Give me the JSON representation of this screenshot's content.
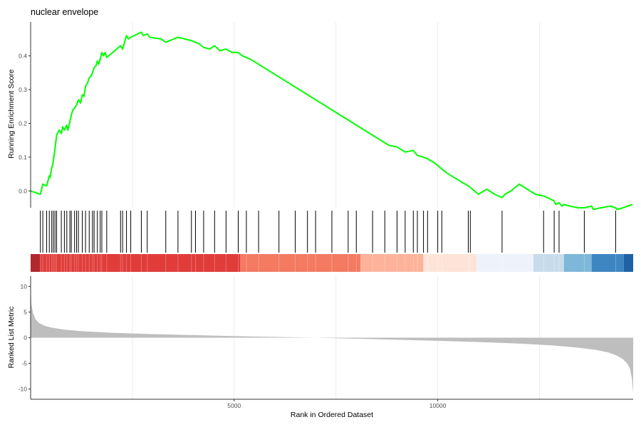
{
  "chart_data": {
    "type": "line",
    "title": "nuclear envelope",
    "xlabel": "Rank in Ordered Dataset",
    "xlim": [
      1,
      14800
    ],
    "x_ticks": [
      5000,
      10000
    ],
    "x_tick_labels": [
      "5000",
      "10000"
    ],
    "x_grid": [
      2500,
      5000,
      7500,
      10000,
      12500
    ],
    "grid": true,
    "panels": {
      "running_score": {
        "ylabel": "Running Enrichment Score",
        "ylim": [
          -0.05,
          0.5
        ],
        "y_ticks": [
          0.0,
          0.1,
          0.2,
          0.3,
          0.4
        ],
        "y_tick_labels": [
          "0.0",
          "0.1",
          "0.2",
          "0.3",
          "0.4"
        ],
        "line_color": "#00ff00",
        "series": [
          {
            "x": [
              1,
              240,
              300,
              395,
              460,
              480,
              520,
              540,
              560,
              600,
              640,
              700,
              755,
              790,
              830,
              890,
              915,
              965,
              1000,
              1040,
              1080,
              1130,
              1175,
              1225,
              1270,
              1310,
              1350,
              1400,
              1440,
              1485,
              1520,
              1560,
              1605,
              1640,
              1670,
              1710,
              1750,
              1790,
              1830,
              1870,
              2210,
              2260,
              2355,
              2400,
              2460,
              2720,
              2770,
              2865,
              2930,
              3200,
              3320,
              3620,
              3950,
              4050,
              4150,
              4250,
              4400,
              4520,
              4650,
              4800,
              4950,
              5100,
              5200,
              5400,
              5600,
              5800,
              6000,
              6200,
              6400,
              6600,
              6800,
              7000,
              7200,
              7400,
              7600,
              7800,
              8000,
              8200,
              8400,
              8600,
              8800,
              9000,
              9200,
              9400,
              9500,
              9650,
              9750,
              9900,
              10000,
              10100,
              10200,
              10400,
              10600,
              10750,
              10800,
              10900,
              11000,
              11200,
              11400,
              11580,
              11650,
              11800,
              12000,
              12200,
              12400,
              12600,
              12700,
              12860,
              12900,
              12980,
              13050,
              13100,
              13250,
              13450,
              13600,
              13780,
              13820,
              14000,
              14250,
              14370,
              14400,
              14550,
              14780
            ],
            "y": [
              0.0,
              -0.01,
              0.02,
              0.015,
              0.045,
              0.04,
              0.07,
              0.075,
              0.09,
              0.125,
              0.165,
              0.18,
              0.17,
              0.19,
              0.18,
              0.195,
              0.18,
              0.205,
              0.225,
              0.24,
              0.245,
              0.255,
              0.27,
              0.26,
              0.285,
              0.28,
              0.31,
              0.32,
              0.335,
              0.34,
              0.35,
              0.365,
              0.37,
              0.385,
              0.375,
              0.39,
              0.41,
              0.4,
              0.41,
              0.395,
              0.43,
              0.42,
              0.46,
              0.45,
              0.455,
              0.47,
              0.46,
              0.465,
              0.455,
              0.45,
              0.44,
              0.455,
              0.445,
              0.44,
              0.435,
              0.425,
              0.42,
              0.43,
              0.415,
              0.42,
              0.41,
              0.41,
              0.4,
              0.39,
              0.375,
              0.36,
              0.345,
              0.33,
              0.315,
              0.3,
              0.285,
              0.27,
              0.255,
              0.24,
              0.225,
              0.21,
              0.195,
              0.18,
              0.165,
              0.15,
              0.135,
              0.13,
              0.115,
              0.12,
              0.105,
              0.1,
              0.095,
              0.085,
              0.075,
              0.065,
              0.055,
              0.04,
              0.025,
              0.015,
              0.01,
              0.0,
              -0.01,
              0.005,
              -0.01,
              -0.02,
              -0.01,
              0.0,
              0.02,
              0.005,
              -0.01,
              -0.015,
              -0.02,
              -0.03,
              -0.04,
              -0.035,
              -0.045,
              -0.04,
              -0.045,
              -0.05,
              -0.05,
              -0.045,
              -0.055,
              -0.05,
              -0.045,
              -0.05,
              -0.055,
              -0.05,
              -0.04
            ]
          }
        ]
      },
      "hits": {
        "hit_ranks": [
          240,
          300,
          395,
          460,
          520,
          560,
          600,
          640,
          755,
          830,
          890,
          965,
          1000,
          1080,
          1130,
          1175,
          1270,
          1350,
          1440,
          1520,
          1560,
          1640,
          1710,
          1750,
          1870,
          2210,
          2260,
          2355,
          2460,
          2720,
          2865,
          3320,
          3620,
          3950,
          4050,
          4250,
          4520,
          4800,
          5100,
          5300,
          5600,
          6100,
          6500,
          6800,
          7000,
          7400,
          7800,
          8000,
          8400,
          8700,
          9000,
          9200,
          9400,
          9500,
          9650,
          9750,
          10000,
          10100,
          10750,
          10800,
          11580,
          12600,
          12860,
          12980,
          13600,
          14370
        ]
      },
      "color_band": {
        "segments": [
          {
            "from": 1,
            "to": 240,
            "color": "#b2272c"
          },
          {
            "from": 240,
            "to": 5150,
            "color": "#e03d3a"
          },
          {
            "from": 5150,
            "to": 8100,
            "color": "#f47a62"
          },
          {
            "from": 8100,
            "to": 9650,
            "color": "#fcb39a"
          },
          {
            "from": 9650,
            "to": 10950,
            "color": "#fee4d8"
          },
          {
            "from": 10950,
            "to": 12350,
            "color": "#eef3fb"
          },
          {
            "from": 12350,
            "to": 13100,
            "color": "#c7dceb"
          },
          {
            "from": 13100,
            "to": 13780,
            "color": "#7db7da"
          },
          {
            "from": 13780,
            "to": 14570,
            "color": "#3d86c2"
          },
          {
            "from": 14570,
            "to": 14800,
            "color": "#1e61a5"
          }
        ]
      },
      "ranked_metric": {
        "ylabel": "Ranked List Metric",
        "ylim": [
          -12,
          12
        ],
        "y_ticks": [
          10,
          5,
          0,
          -5,
          -10
        ],
        "y_tick_labels": [
          "10",
          "5",
          "0",
          "-5",
          "-10"
        ],
        "fill_color": "#bebebe",
        "x": [
          1,
          20,
          60,
          120,
          200,
          350,
          500,
          800,
          1200,
          2000,
          3000,
          4000,
          5000,
          6000,
          7000,
          8000,
          9000,
          10000,
          11000,
          12000,
          12800,
          13400,
          13900,
          14200,
          14400,
          14550,
          14650,
          14720,
          14770,
          14800
        ],
        "y": [
          10.0,
          6.5,
          4.8,
          3.6,
          2.9,
          2.3,
          2.0,
          1.6,
          1.3,
          0.95,
          0.7,
          0.5,
          0.32,
          0.15,
          0.0,
          -0.2,
          -0.4,
          -0.6,
          -0.85,
          -1.15,
          -1.5,
          -1.9,
          -2.4,
          -2.9,
          -3.5,
          -4.2,
          -5.0,
          -6.0,
          -8.0,
          -10.8
        ]
      }
    }
  }
}
